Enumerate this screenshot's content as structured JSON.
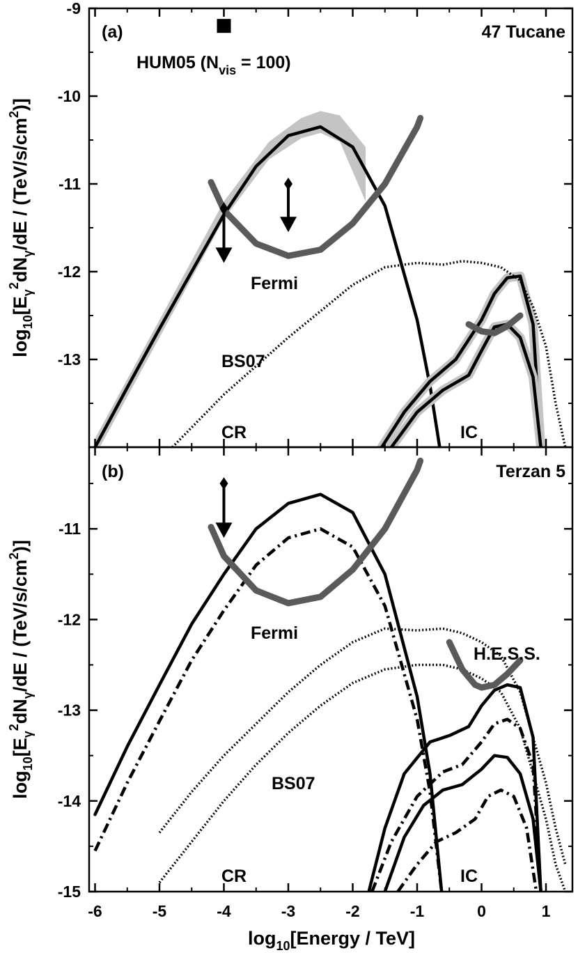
{
  "chart_data": [
    {
      "type": "line",
      "panel_label": "(a)",
      "title": "47 Tucane",
      "xlabel": "",
      "ylabel": "log10[Eγ2dNγ/dE / (TeV/s/cm2)]",
      "xlim": [
        -6,
        1.3
      ],
      "ylim": [
        -14,
        -9
      ],
      "y_ticks": [
        -9,
        -10,
        -11,
        -12,
        -13
      ],
      "annotations": [
        {
          "text": "HUM05 (N",
          "sub": "vis",
          "tail": " = 100)",
          "marker": "filled-square",
          "x": -4.0,
          "y": -9.2
        },
        {
          "text": "Fermi"
        },
        {
          "text": "BS07"
        },
        {
          "text": "CR"
        },
        {
          "text": "IC"
        }
      ],
      "series": [
        {
          "style": "grey-band",
          "x": [
            -6.0,
            -5.0,
            -4.0,
            -3.3,
            -2.8,
            -2.5,
            -2.2,
            -1.8
          ],
          "y_low": [
            -14.1,
            -12.75,
            -11.4,
            -10.72,
            -10.48,
            -10.42,
            -10.52,
            -11.2
          ],
          "y_high": [
            -13.9,
            -12.55,
            -11.2,
            -10.52,
            -10.25,
            -10.17,
            -10.22,
            -10.58
          ]
        },
        {
          "style": "solid",
          "x": [
            -6.0,
            -5.5,
            -5.0,
            -4.5,
            -4.0,
            -3.5,
            -3.0,
            -2.5,
            -2.0,
            -1.5,
            -1.0,
            -0.8,
            -0.65
          ],
          "y": [
            -14.0,
            -13.32,
            -12.65,
            -12.0,
            -11.35,
            -10.8,
            -10.45,
            -10.35,
            -10.58,
            -11.25,
            -12.55,
            -13.3,
            -14.0
          ]
        },
        {
          "style": "solid",
          "x": [
            -1.55,
            -1.2,
            -0.8,
            -0.4,
            0.0,
            0.2,
            0.4,
            0.6,
            0.8,
            0.92
          ],
          "y": [
            -14.0,
            -13.6,
            -13.25,
            -13.0,
            -12.55,
            -12.25,
            -12.07,
            -12.05,
            -12.6,
            -14.0
          ]
        },
        {
          "style": "solid",
          "x": [
            -1.4,
            -1.0,
            -0.6,
            -0.2,
            0.0,
            0.2,
            0.4,
            0.6,
            0.8,
            0.92
          ],
          "y": [
            -14.0,
            -13.6,
            -13.35,
            -13.18,
            -12.9,
            -12.63,
            -12.6,
            -12.75,
            -13.2,
            -14.0
          ]
        },
        {
          "style": "dotted",
          "x": [
            -4.8,
            -4.0,
            -3.0,
            -2.0,
            -1.5,
            -1.0,
            -0.6,
            -0.3,
            0.0,
            0.3,
            0.6,
            0.8,
            1.0,
            1.15,
            1.3
          ],
          "y": [
            -14.0,
            -13.4,
            -12.75,
            -12.15,
            -11.95,
            -11.9,
            -11.92,
            -11.88,
            -11.9,
            -11.95,
            -12.1,
            -12.4,
            -12.85,
            -13.5,
            -14.0
          ]
        },
        {
          "style": "thick-grey",
          "name": "Fermi",
          "x": [
            -4.2,
            -4.0,
            -3.5,
            -3.0,
            -2.5,
            -2.0,
            -1.5,
            -1.0,
            -0.95
          ],
          "y": [
            -10.98,
            -11.3,
            -11.68,
            -11.82,
            -11.75,
            -11.45,
            -11.0,
            -10.35,
            -10.25
          ]
        },
        {
          "style": "thick-grey",
          "x": [
            -0.2,
            0.0,
            0.2,
            0.4,
            0.6
          ],
          "y": [
            -12.6,
            -12.68,
            -12.7,
            -12.62,
            -12.5
          ]
        }
      ],
      "arrows": [
        {
          "x": -4.0,
          "y_from": -11.28,
          "y_to": -11.9
        },
        {
          "x": -3.0,
          "y_from": -11.0,
          "y_to": -11.55
        }
      ]
    },
    {
      "type": "line",
      "panel_label": "(b)",
      "title": "Terzan 5",
      "xlabel": "log10[Energy / TeV]",
      "ylabel": "log10[Eγ2dNγ/dE / (TeV/s/cm2)]",
      "xlim": [
        -6,
        1.3
      ],
      "ylim": [
        -15,
        -10.1
      ],
      "x_ticks": [
        -6,
        -5,
        -4,
        -3,
        -2,
        -1,
        0,
        1
      ],
      "y_ticks": [
        -11,
        -12,
        -13,
        -14,
        -15
      ],
      "annotations": [
        {
          "text": "Fermi"
        },
        {
          "text": "BS07"
        },
        {
          "text": "H.E.S.S."
        },
        {
          "text": "CR"
        },
        {
          "text": "IC"
        }
      ],
      "series": [
        {
          "style": "solid",
          "x": [
            -6.0,
            -5.5,
            -5.0,
            -4.5,
            -4.0,
            -3.5,
            -3.0,
            -2.5,
            -2.0,
            -1.5,
            -1.0,
            -0.8,
            -0.62
          ],
          "y": [
            -14.15,
            -13.4,
            -12.72,
            -12.05,
            -11.5,
            -11.0,
            -10.72,
            -10.62,
            -10.82,
            -11.5,
            -12.85,
            -13.7,
            -15.0
          ]
        },
        {
          "style": "dashdot",
          "x": [
            -6.0,
            -5.5,
            -5.0,
            -4.5,
            -4.0,
            -3.5,
            -3.0,
            -2.5,
            -2.0,
            -1.5,
            -1.0,
            -0.8,
            -0.62
          ],
          "y": [
            -14.55,
            -13.8,
            -13.12,
            -12.45,
            -11.9,
            -11.4,
            -11.1,
            -11.0,
            -11.2,
            -11.85,
            -13.1,
            -13.9,
            -15.0
          ]
        },
        {
          "style": "solid",
          "x": [
            -1.75,
            -1.5,
            -1.2,
            -0.8,
            -0.5,
            -0.2,
            0.0,
            0.2,
            0.4,
            0.6,
            0.8,
            0.92
          ],
          "y": [
            -15.0,
            -14.3,
            -13.7,
            -13.35,
            -13.28,
            -13.18,
            -12.95,
            -12.78,
            -12.72,
            -12.75,
            -13.3,
            -15.0
          ]
        },
        {
          "style": "dashdot",
          "x": [
            -1.7,
            -1.4,
            -1.0,
            -0.6,
            -0.3,
            0.0,
            0.2,
            0.4,
            0.6,
            0.8,
            0.92
          ],
          "y": [
            -15.0,
            -14.45,
            -13.95,
            -13.68,
            -13.6,
            -13.35,
            -13.15,
            -13.1,
            -13.2,
            -13.6,
            -15.0
          ]
        },
        {
          "style": "solid",
          "x": [
            -1.5,
            -1.2,
            -0.9,
            -0.6,
            -0.3,
            0.0,
            0.2,
            0.4,
            0.6,
            0.8,
            0.92
          ],
          "y": [
            -15.0,
            -14.4,
            -14.05,
            -13.88,
            -13.82,
            -13.65,
            -13.5,
            -13.52,
            -13.7,
            -14.2,
            -15.0
          ]
        },
        {
          "style": "dashdot",
          "x": [
            -1.3,
            -1.0,
            -0.7,
            -0.4,
            -0.1,
            0.1,
            0.3,
            0.5,
            0.7,
            0.85
          ],
          "y": [
            -15.0,
            -14.7,
            -14.45,
            -14.35,
            -14.2,
            -13.95,
            -13.88,
            -13.95,
            -14.3,
            -15.0
          ]
        },
        {
          "style": "dotted",
          "x": [
            -5.0,
            -4.5,
            -4.0,
            -3.5,
            -3.0,
            -2.5,
            -2.0,
            -1.5,
            -1.0,
            -0.6,
            -0.3,
            0.0,
            0.3,
            0.6,
            0.8,
            1.0,
            1.15,
            1.3
          ],
          "y": [
            -14.35,
            -13.9,
            -13.5,
            -13.15,
            -12.8,
            -12.5,
            -12.25,
            -12.1,
            -12.12,
            -12.1,
            -12.15,
            -12.25,
            -12.4,
            -12.8,
            -13.3,
            -13.8,
            -14.3,
            -14.7
          ]
        },
        {
          "style": "dotted",
          "x": [
            -5.0,
            -4.5,
            -4.0,
            -3.5,
            -3.0,
            -2.5,
            -2.0,
            -1.5,
            -1.0,
            -0.6,
            -0.3,
            0.0,
            0.3,
            0.6,
            0.8,
            1.0,
            1.15,
            1.3
          ],
          "y": [
            -14.9,
            -14.45,
            -14.0,
            -13.6,
            -13.25,
            -12.95,
            -12.7,
            -12.55,
            -12.5,
            -12.5,
            -12.55,
            -12.65,
            -12.8,
            -13.2,
            -13.7,
            -14.2,
            -14.7,
            -15.0
          ]
        },
        {
          "style": "thick-grey",
          "name": "Fermi",
          "x": [
            -4.2,
            -4.0,
            -3.5,
            -3.0,
            -2.5,
            -2.0,
            -1.5,
            -1.0,
            -0.95
          ],
          "y": [
            -10.98,
            -11.3,
            -11.68,
            -11.82,
            -11.75,
            -11.45,
            -11.0,
            -10.35,
            -10.25
          ]
        },
        {
          "style": "thick-grey",
          "name": "H.E.S.S.",
          "x": [
            -0.5,
            -0.3,
            -0.1,
            0.0,
            0.2,
            0.4,
            0.6
          ],
          "y": [
            -12.25,
            -12.55,
            -12.72,
            -12.75,
            -12.72,
            -12.6,
            -12.45
          ]
        }
      ],
      "arrows": [
        {
          "x": -4.0,
          "y_from": -10.5,
          "y_to": -11.1
        }
      ]
    }
  ]
}
